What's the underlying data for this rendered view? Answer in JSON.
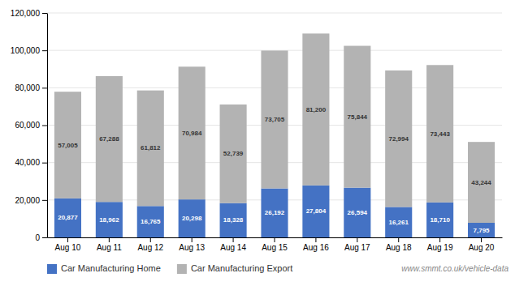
{
  "chart_data": {
    "type": "bar",
    "stacked": true,
    "categories": [
      "Aug 10",
      "Aug 11",
      "Aug 12",
      "Aug 13",
      "Aug 14",
      "Aug 15",
      "Aug 16",
      "Aug 17",
      "Aug 18",
      "Aug 19",
      "Aug 20"
    ],
    "series": [
      {
        "name": "Car Manufacturing Home",
        "color": "#4472c4",
        "values": [
          20877,
          18962,
          16765,
          20298,
          18328,
          26192,
          27804,
          26594,
          16261,
          18710,
          7795
        ],
        "value_labels": [
          "20,877",
          "18,962",
          "16,765",
          "20,298",
          "18,328",
          "26,192",
          "27,804",
          "26,594",
          "16,261",
          "18,710",
          "7,795"
        ]
      },
      {
        "name": "Car Manufacturing Export",
        "color": "#b3b3b3",
        "values": [
          57005,
          67288,
          61812,
          70984,
          52739,
          73705,
          81200,
          75844,
          72994,
          73443,
          43244
        ],
        "value_labels": [
          "57,005",
          "67,288",
          "61,812",
          "70,984",
          "52,739",
          "73,705",
          "81,200",
          "75,844",
          "72,994",
          "73,443",
          "43,244"
        ]
      }
    ],
    "ylim": [
      0,
      120000
    ],
    "yticks": [
      0,
      {
        "value": 20000,
        "label": "20,000"
      },
      {
        "value": 40000,
        "label": "40,000"
      },
      {
        "value": 60000,
        "label": "60,000"
      },
      {
        "value": 80000,
        "label": "80,000"
      },
      {
        "value": 100000,
        "label": "100,000"
      },
      {
        "value": 120000,
        "label": "120,000"
      }
    ],
    "grid": true,
    "data_labels": true,
    "legend": "lower left",
    "annotations": [
      "www.smmt.co.uk/vehicle-data"
    ]
  }
}
